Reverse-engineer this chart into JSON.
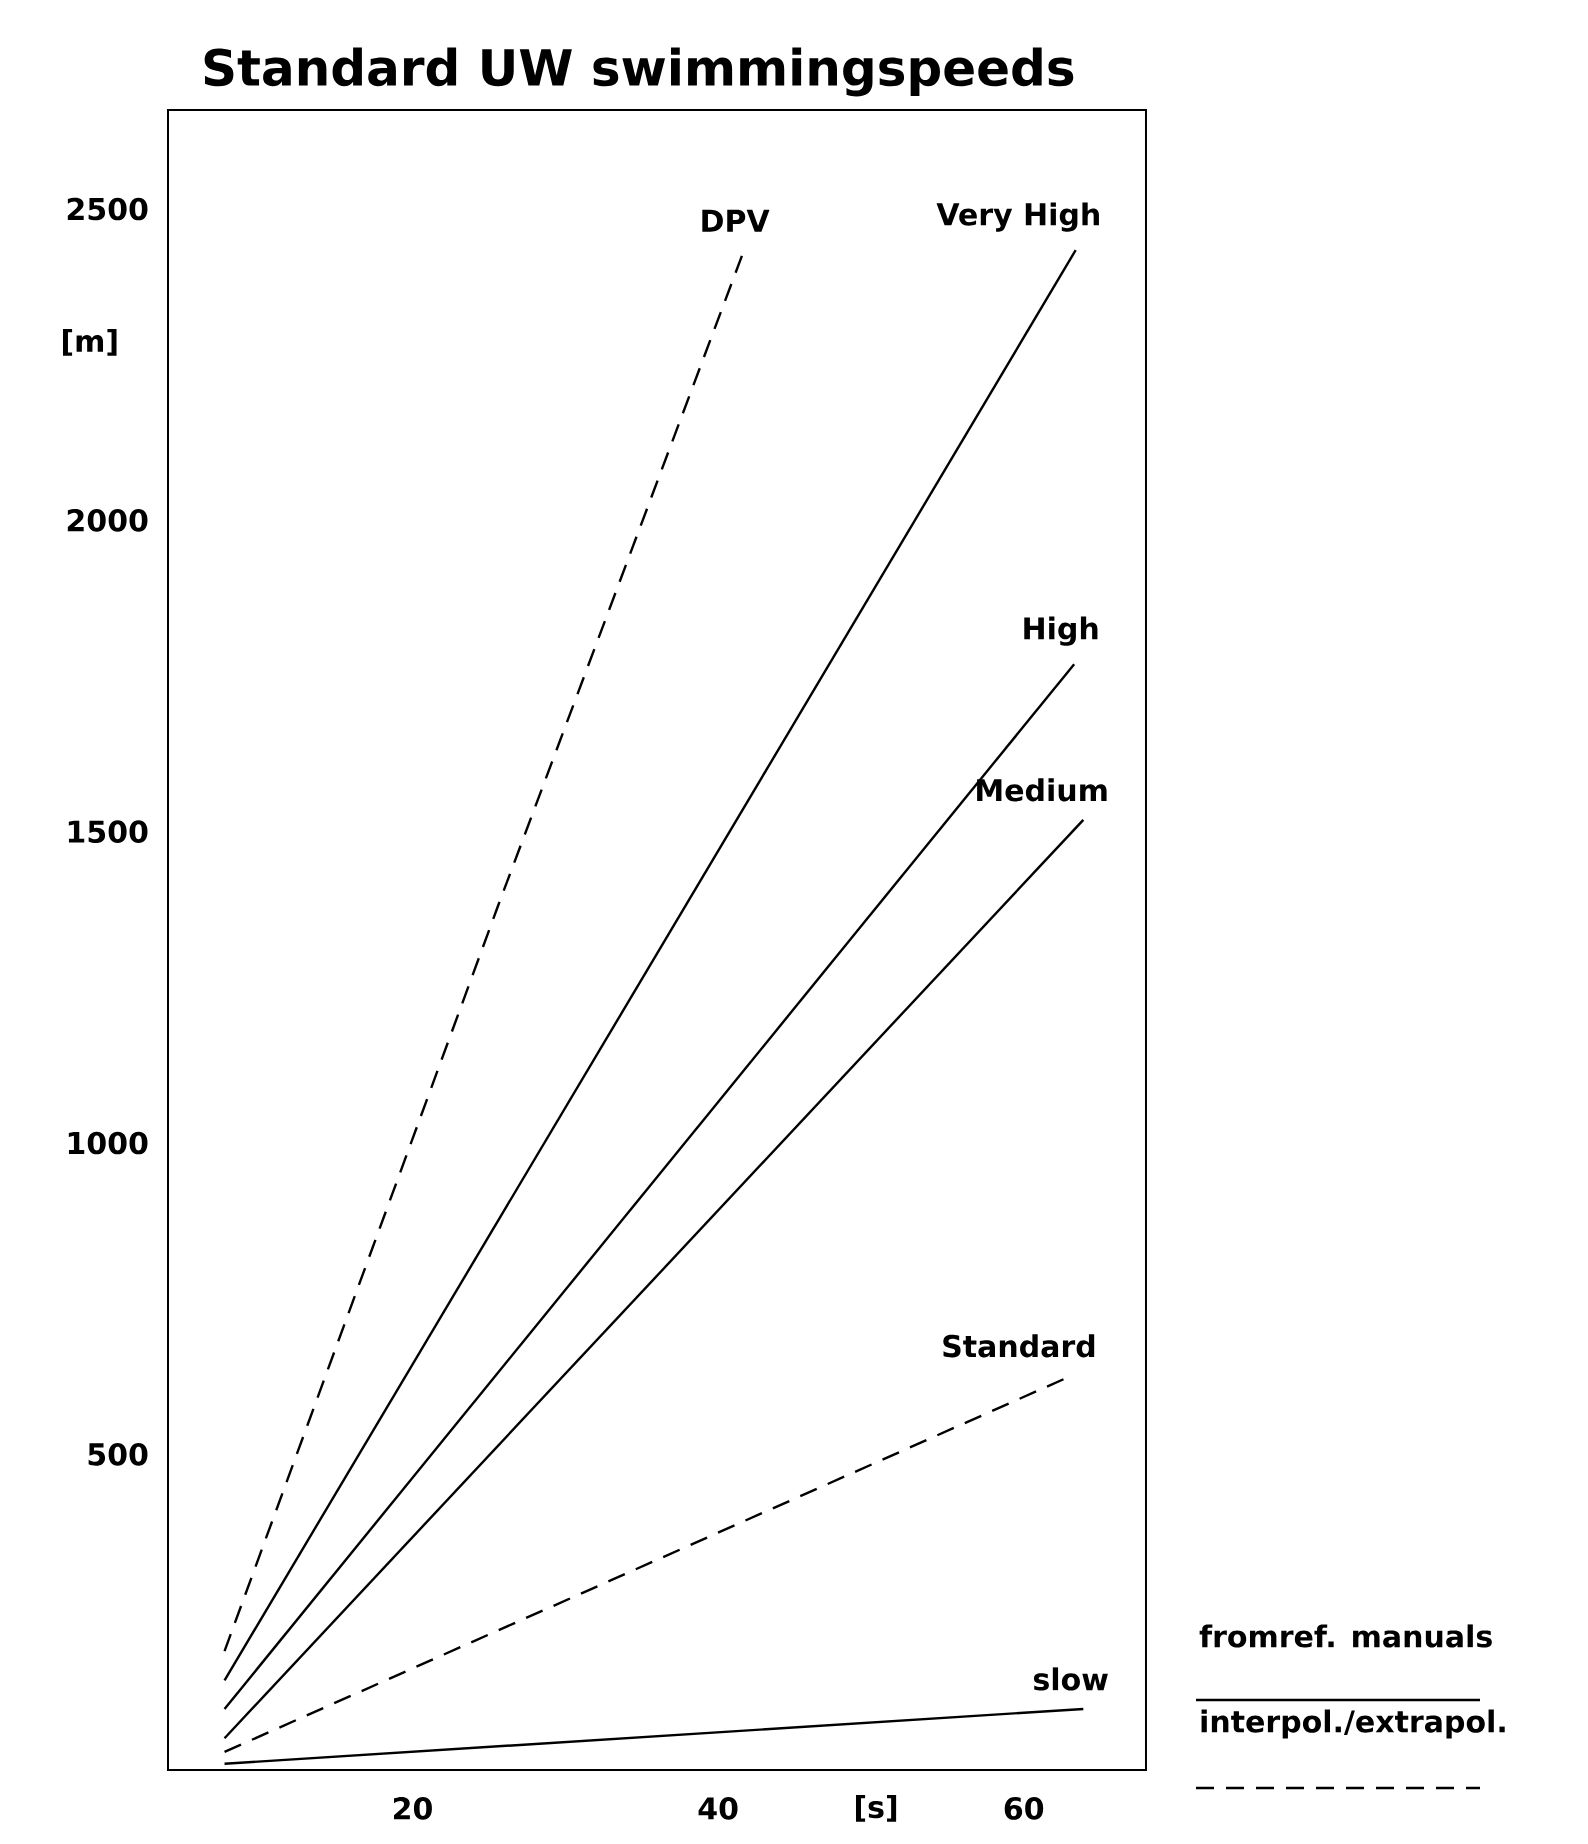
{
  "chart_data": {
    "type": "line",
    "title": "Standard UW swimmingspeeds",
    "xlabel": "[s]",
    "ylabel": "[m]",
    "xlim": [
      4,
      68
    ],
    "ylim": [
      -7,
      2659
    ],
    "xticks": [
      20,
      40,
      60
    ],
    "yticks": [
      500,
      1000,
      1500,
      2000,
      2500
    ],
    "grid": false,
    "marker": "none",
    "series": [
      {
        "name": "slow",
        "color": "#000000",
        "line_style": "solid",
        "x": [
          7.7,
          63.9
        ],
        "values": [
          3,
          91
        ]
      },
      {
        "name": "Standard",
        "color": "#000000",
        "line_style": "dashed",
        "x": [
          7.7,
          63.1
        ],
        "values": [
          22,
          626
        ]
      },
      {
        "name": "Medium",
        "color": "#000000",
        "line_style": "solid",
        "x": [
          7.7,
          63.9
        ],
        "values": [
          44,
          1519
        ]
      },
      {
        "name": "High",
        "color": "#000000",
        "line_style": "solid",
        "x": [
          7.7,
          63.3
        ],
        "values": [
          91,
          1769
        ]
      },
      {
        "name": "Very High",
        "color": "#000000",
        "line_style": "solid",
        "x": [
          7.7,
          63.4
        ],
        "values": [
          137,
          2434
        ]
      },
      {
        "name": "DPV",
        "color": "#000000",
        "line_style": "dashed",
        "x": [
          7.7,
          25.6,
          41.7
        ],
        "values": [
          184,
          1381,
          2434
        ]
      }
    ],
    "annotations": [
      "fromref. manuals",
      "interpol./extrapol."
    ]
  }
}
